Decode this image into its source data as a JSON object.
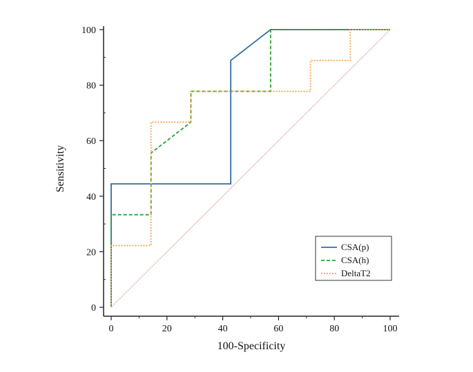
{
  "chart_data": {
    "type": "line",
    "xlabel": "100-Specificity",
    "ylabel": "Sensitivity",
    "xlim": [
      0,
      100
    ],
    "ylim": [
      0,
      100
    ],
    "xticks": [
      0,
      20,
      40,
      60,
      80,
      100
    ],
    "yticks": [
      0,
      20,
      40,
      60,
      80,
      100
    ],
    "grid": false,
    "legend_position": "bottom-right",
    "reference_line": {
      "x": [
        0,
        100
      ],
      "y": [
        0,
        100
      ],
      "color": "#e8c8c0"
    },
    "series": [
      {
        "name": "CSA(p)",
        "color": "#2e6da4",
        "style": "solid",
        "x": [
          0,
          0,
          42.86,
          42.86,
          57.14,
          100
        ],
        "y": [
          0,
          44.44,
          44.44,
          88.89,
          100,
          100
        ]
      },
      {
        "name": "CSA(h)",
        "color": "#2ca02c",
        "style": "dashed",
        "x": [
          0,
          0,
          14.29,
          14.29,
          28.57,
          28.57,
          57.14,
          57.14,
          100
        ],
        "y": [
          0,
          33.33,
          33.33,
          55.56,
          66.67,
          77.78,
          77.78,
          100,
          100
        ]
      },
      {
        "name": "DeltaT2",
        "color": "#f0a050",
        "style": "dotted",
        "x": [
          0,
          0,
          14.29,
          14.29,
          28.57,
          28.57,
          71.43,
          71.43,
          85.71,
          85.71,
          100
        ],
        "y": [
          0,
          22.22,
          22.22,
          66.67,
          66.67,
          77.78,
          77.78,
          88.89,
          88.89,
          100,
          100
        ]
      }
    ]
  }
}
